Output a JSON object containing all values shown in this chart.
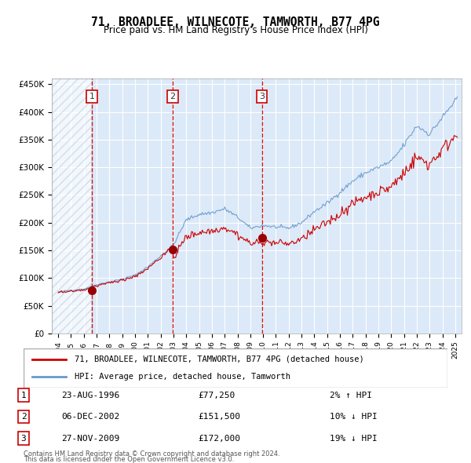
{
  "title": "71, BROADLEE, WILNECOTE, TAMWORTH, B77 4PG",
  "subtitle": "Price paid vs. HM Land Registry's House Price Index (HPI)",
  "footnote1": "Contains HM Land Registry data © Crown copyright and database right 2024.",
  "footnote2": "This data is licensed under the Open Government Licence v3.0.",
  "legend_red": "71, BROADLEE, WILNECOTE, TAMWORTH, B77 4PG (detached house)",
  "legend_blue": "HPI: Average price, detached house, Tamworth",
  "sale1_label": "23-AUG-1996",
  "sale1_price": "£77,250",
  "sale1_hpi": "2% ↑ HPI",
  "sale2_label": "06-DEC-2002",
  "sale2_price": "£151,500",
  "sale2_hpi": "10% ↓ HPI",
  "sale3_label": "27-NOV-2009",
  "sale3_price": "£172,000",
  "sale3_hpi": "19% ↓ HPI",
  "bg_color": "#dce9f8",
  "plot_bg": "#dce9f8",
  "hatch_color": "#b0c4de",
  "grid_color": "#ffffff",
  "red_line_color": "#cc0000",
  "blue_line_color": "#6699cc",
  "dashed_color": "#cc0000",
  "marker_color": "#990000",
  "ylim": [
    0,
    460000
  ],
  "yticks": [
    0,
    50000,
    100000,
    150000,
    200000,
    250000,
    300000,
    350000,
    400000,
    450000
  ],
  "sale1_x": 1996.64,
  "sale1_y": 77250,
  "sale2_x": 2002.93,
  "sale2_y": 151500,
  "sale3_x": 2009.9,
  "sale3_y": 172000,
  "xmin": 1993.5,
  "xmax": 2025.5,
  "xticks": [
    1994,
    1995,
    1996,
    1997,
    1998,
    1999,
    2000,
    2001,
    2002,
    2003,
    2004,
    2005,
    2006,
    2007,
    2008,
    2009,
    2010,
    2011,
    2012,
    2013,
    2014,
    2015,
    2016,
    2017,
    2018,
    2019,
    2020,
    2021,
    2022,
    2023,
    2024,
    2025
  ]
}
